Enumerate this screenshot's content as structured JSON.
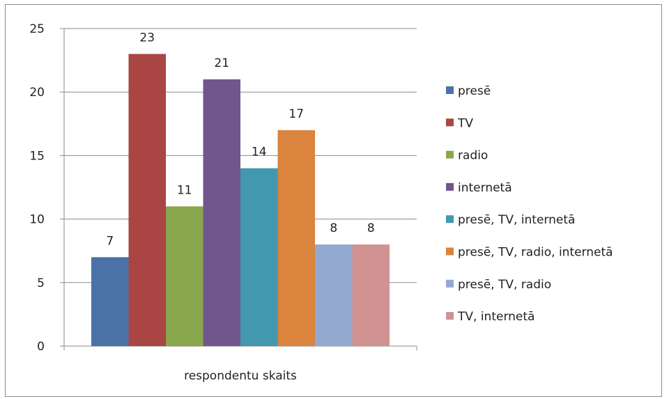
{
  "chart_data": {
    "type": "bar",
    "categories": [
      "respondentu skaits"
    ],
    "ylim": [
      0,
      25
    ],
    "yticks": [
      0,
      5,
      10,
      15,
      20,
      25
    ],
    "grid": true,
    "legend_position": "right",
    "series": [
      {
        "name": "presē",
        "values": [
          7
        ],
        "color": "#4a72a8"
      },
      {
        "name": "TV",
        "values": [
          23
        ],
        "color": "#a94644"
      },
      {
        "name": "radio",
        "values": [
          11
        ],
        "color": "#8aa64d"
      },
      {
        "name": "internetā",
        "values": [
          21
        ],
        "color": "#70568d"
      },
      {
        "name": "presē, TV, internetā",
        "values": [
          14
        ],
        "color": "#4298af"
      },
      {
        "name": "presē, TV, radio, internetā",
        "values": [
          17
        ],
        "color": "#db843d"
      },
      {
        "name": "presē, TV, radio",
        "values": [
          8
        ],
        "color": "#93a9cf"
      },
      {
        "name": "TV, internetā",
        "values": [
          8
        ],
        "color": "#d09392"
      }
    ]
  }
}
